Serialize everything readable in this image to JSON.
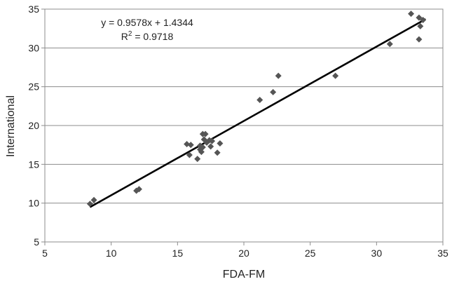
{
  "chart_data": {
    "type": "scatter",
    "title": "",
    "xlabel": "FDA-FM",
    "ylabel": "International",
    "xlim": [
      5,
      35
    ],
    "ylim": [
      5,
      35
    ],
    "xticks": [
      5,
      10,
      15,
      20,
      25,
      30,
      35
    ],
    "yticks": [
      5,
      10,
      15,
      20,
      25,
      30,
      35
    ],
    "grid": "horizontal",
    "marker_color": "#555555",
    "points": [
      {
        "x": 8.4,
        "y": 9.9
      },
      {
        "x": 8.7,
        "y": 10.4
      },
      {
        "x": 11.9,
        "y": 11.6
      },
      {
        "x": 12.1,
        "y": 11.8
      },
      {
        "x": 15.7,
        "y": 17.6
      },
      {
        "x": 16.0,
        "y": 17.5
      },
      {
        "x": 15.9,
        "y": 16.2
      },
      {
        "x": 16.5,
        "y": 15.7
      },
      {
        "x": 16.7,
        "y": 16.9
      },
      {
        "x": 16.8,
        "y": 16.6
      },
      {
        "x": 16.7,
        "y": 17.4
      },
      {
        "x": 16.9,
        "y": 17.2
      },
      {
        "x": 16.9,
        "y": 18.9
      },
      {
        "x": 17.1,
        "y": 18.9
      },
      {
        "x": 17.0,
        "y": 18.2
      },
      {
        "x": 17.2,
        "y": 17.8
      },
      {
        "x": 17.4,
        "y": 18.1
      },
      {
        "x": 17.5,
        "y": 17.3
      },
      {
        "x": 17.6,
        "y": 18.0
      },
      {
        "x": 18.0,
        "y": 16.5
      },
      {
        "x": 18.2,
        "y": 17.7
      },
      {
        "x": 21.2,
        "y": 23.3
      },
      {
        "x": 22.2,
        "y": 24.3
      },
      {
        "x": 22.6,
        "y": 26.4
      },
      {
        "x": 26.9,
        "y": 26.4
      },
      {
        "x": 31.0,
        "y": 30.5
      },
      {
        "x": 32.6,
        "y": 34.4
      },
      {
        "x": 33.2,
        "y": 33.9
      },
      {
        "x": 33.5,
        "y": 33.6
      },
      {
        "x": 33.3,
        "y": 32.8
      },
      {
        "x": 33.2,
        "y": 31.1
      }
    ],
    "trendline": {
      "slope": 0.9578,
      "intercept": 1.4344,
      "x_range": [
        8.4,
        33.7
      ],
      "equation_label": "y = 0.9578x + 1.4344",
      "r2_prefix": "R",
      "r2_sup": "2",
      "r2_value": " = 0.9718"
    }
  }
}
